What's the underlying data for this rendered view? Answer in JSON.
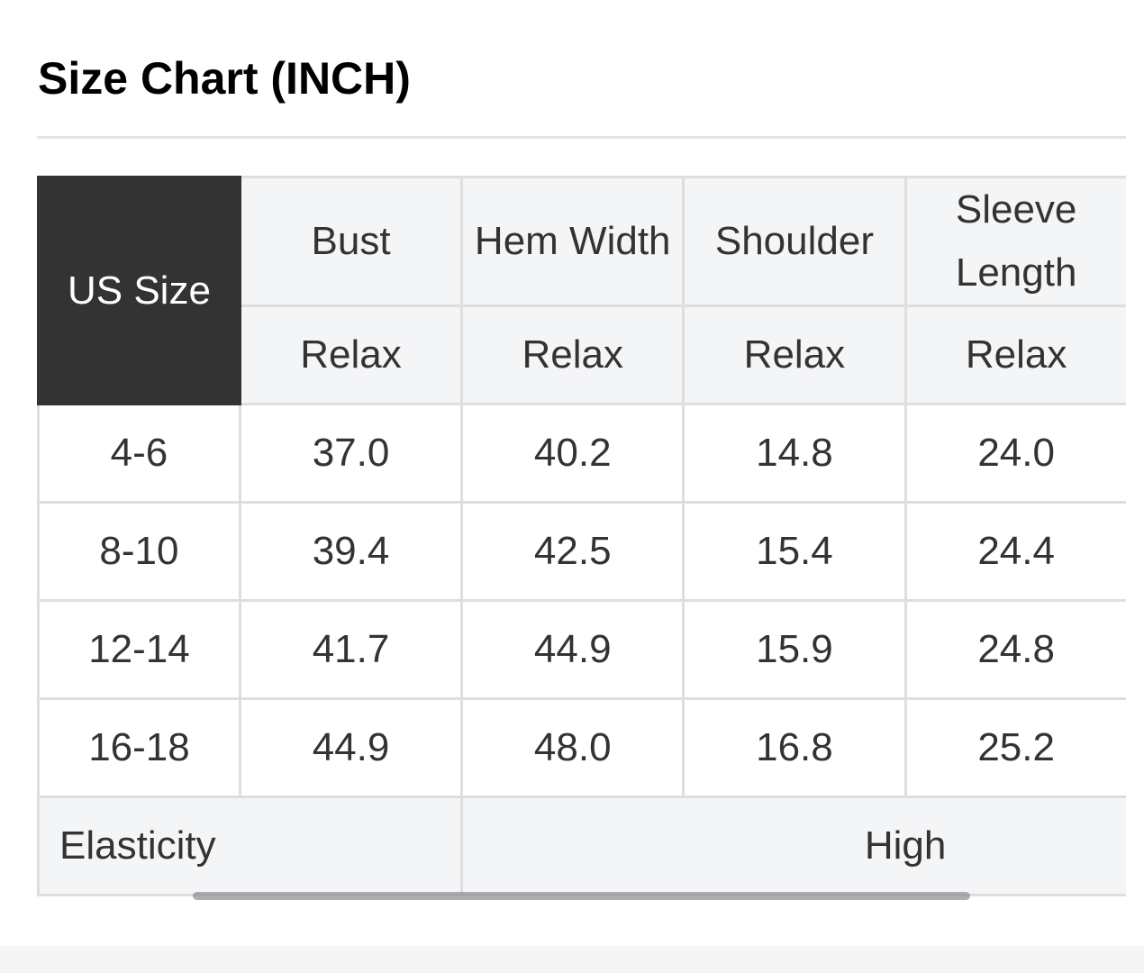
{
  "title": "Size Chart (INCH)",
  "table": {
    "size_header": "US Size",
    "columns": [
      {
        "name": "Bust",
        "sub": "Relax"
      },
      {
        "name": "Hem Width",
        "sub": "Relax"
      },
      {
        "name": "Shoulder",
        "sub": "Relax"
      },
      {
        "name": "Sleeve Length",
        "sub": "Relax"
      }
    ],
    "rows": [
      {
        "size": "4-6",
        "values": [
          "37.0",
          "40.2",
          "14.8",
          "24.0"
        ]
      },
      {
        "size": "8-10",
        "values": [
          "39.4",
          "42.5",
          "15.4",
          "24.4"
        ]
      },
      {
        "size": "12-14",
        "values": [
          "41.7",
          "44.9",
          "15.9",
          "24.8"
        ]
      },
      {
        "size": "16-18",
        "values": [
          "44.9",
          "48.0",
          "16.8",
          "25.2"
        ]
      }
    ],
    "elasticity_label": "Elasticity",
    "elasticity_value": "High"
  },
  "colors": {
    "header_dark": "#333333",
    "header_bg": "#f4f5f7",
    "border": "#dedede"
  }
}
